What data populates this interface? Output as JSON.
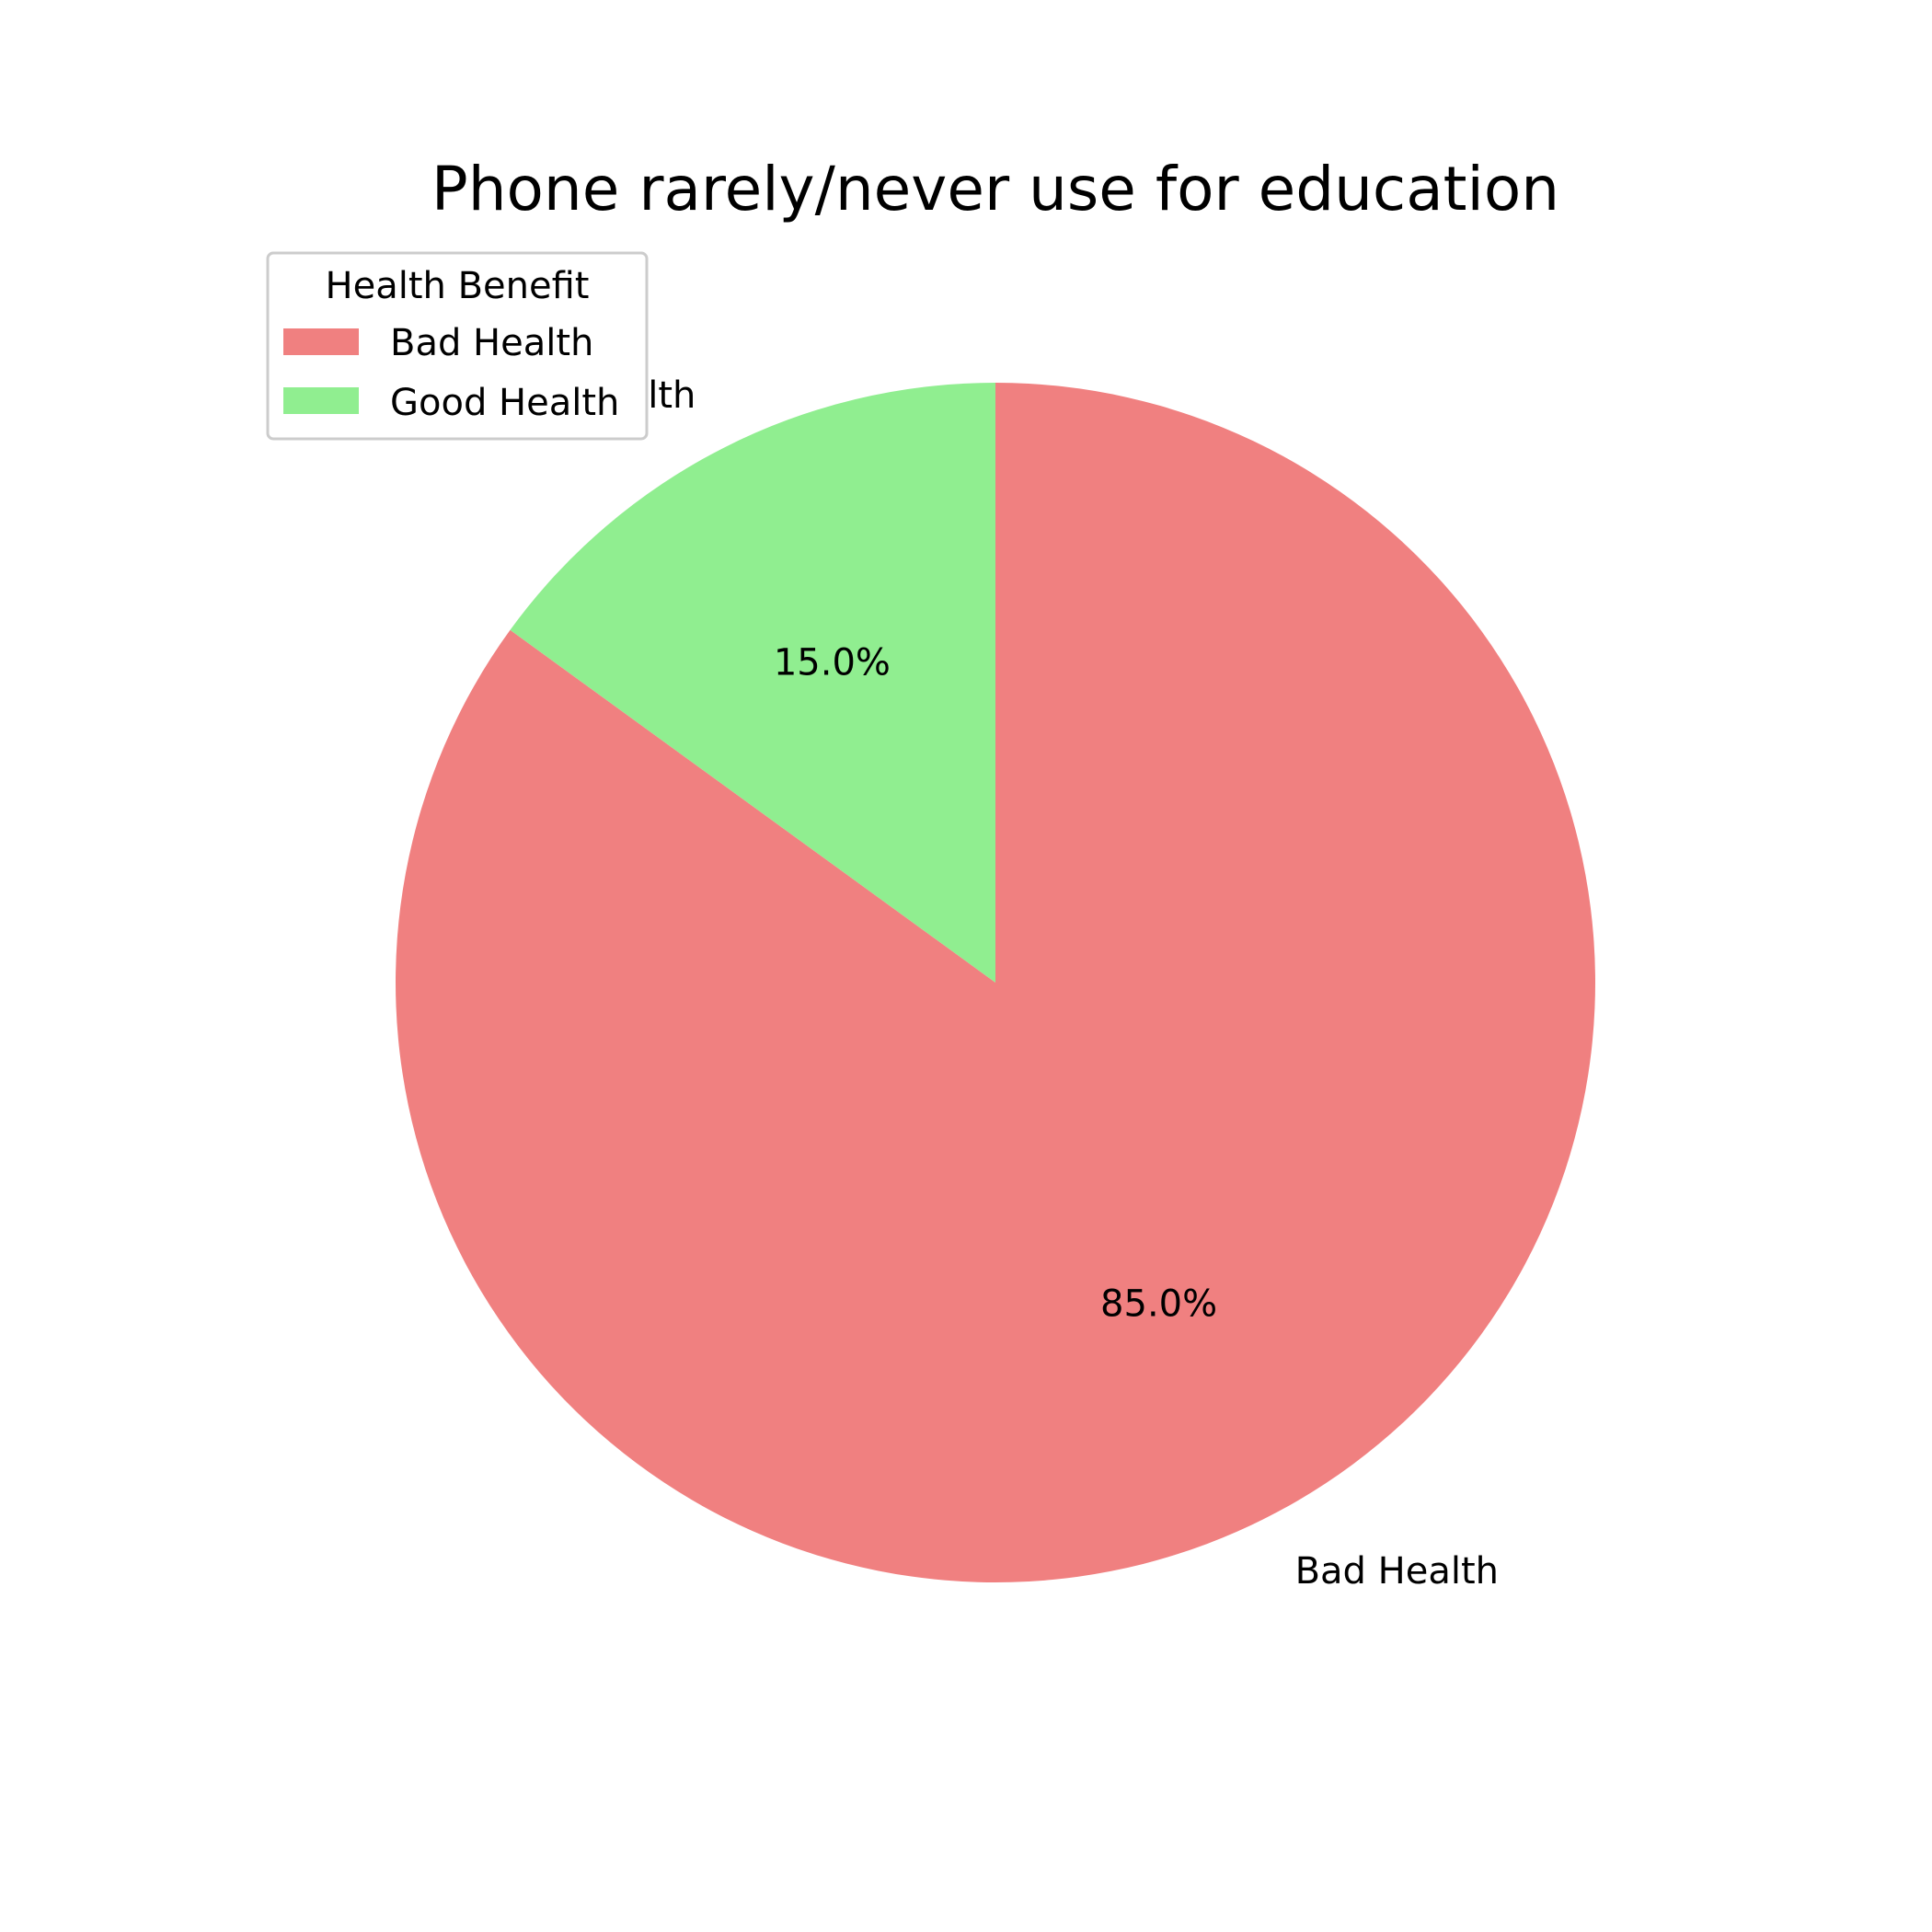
{
  "chart_data": {
    "type": "pie",
    "title": "Phone rarely/never use for education",
    "categories": [
      "Bad Health",
      "Good Health"
    ],
    "values": [
      85.0,
      15.0
    ],
    "percent_labels": [
      "85.0%",
      "15.0%"
    ],
    "colors": [
      "#f08080",
      "#90ee90"
    ],
    "start_angle_deg": 90,
    "direction": "clockwise",
    "legend": {
      "title": "Health Benefit",
      "placement": "upper-left",
      "entries": [
        "Bad Health",
        "Good Health"
      ]
    }
  }
}
